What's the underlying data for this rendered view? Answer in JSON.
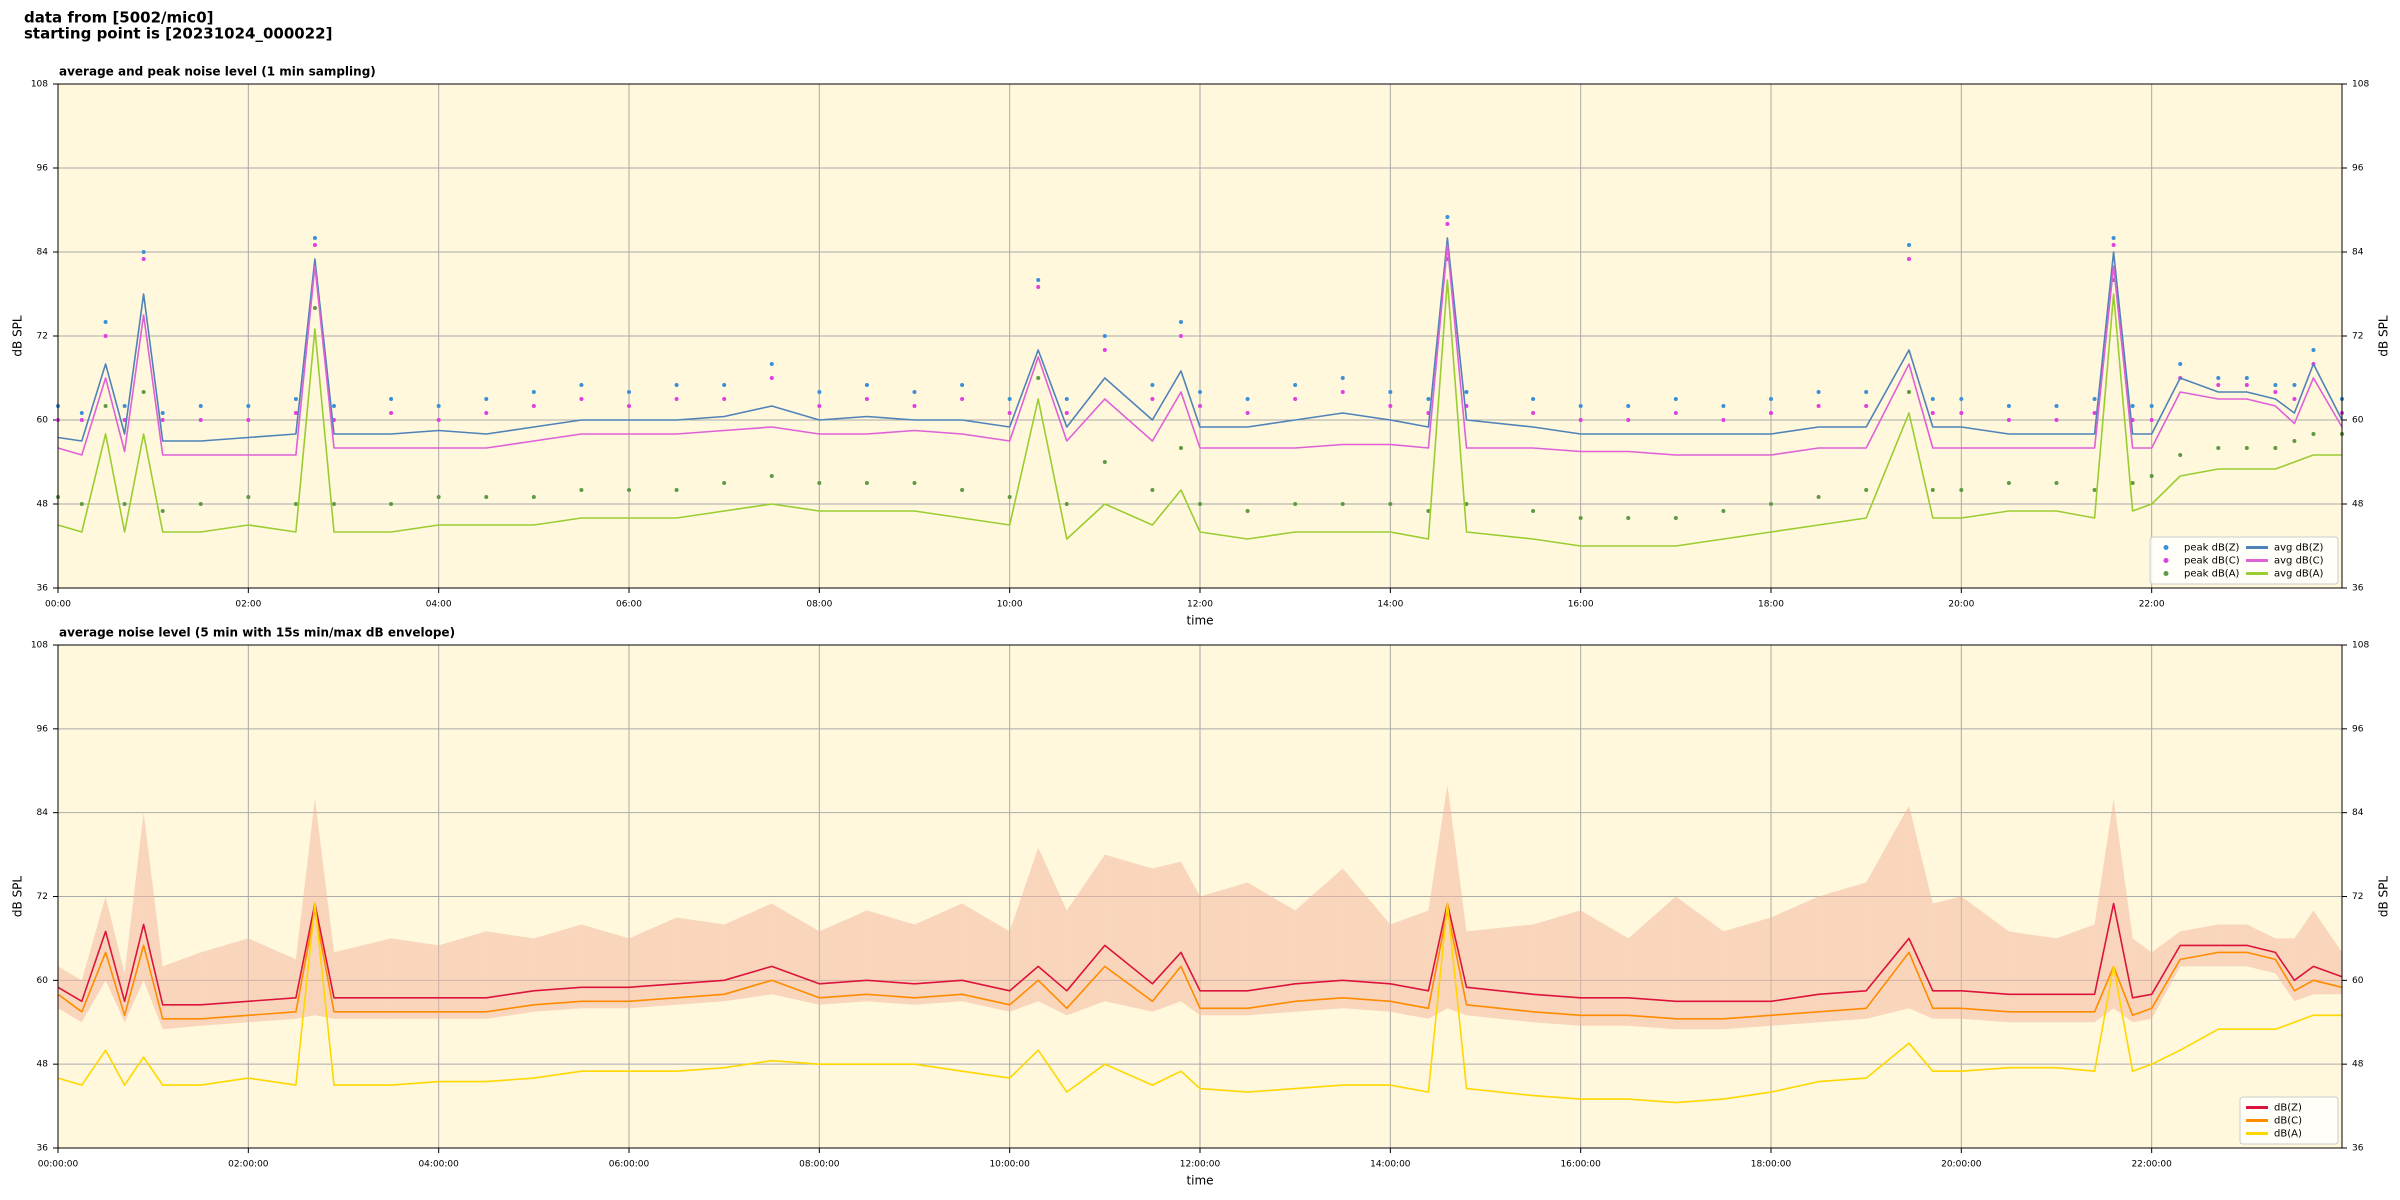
{
  "header": {
    "source": "data from [5002/mic0]",
    "start": "starting point is [20231024_000022]"
  },
  "chart_data": [
    {
      "type": "line",
      "title": "average and peak noise level (1 min sampling)",
      "xlabel": "time",
      "ylabel": "dB SPL",
      "facecolor": "#fff8dc",
      "grid": true,
      "legend": "lower right",
      "legend_columns": 2,
      "xlim": [
        0,
        24
      ],
      "ylim": [
        36,
        108
      ],
      "xticks": [
        {
          "value": 0,
          "label": "00:00"
        },
        {
          "value": 2,
          "label": "02:00"
        },
        {
          "value": 4,
          "label": "04:00"
        },
        {
          "value": 6,
          "label": "06:00"
        },
        {
          "value": 8,
          "label": "08:00"
        },
        {
          "value": 10,
          "label": "10:00"
        },
        {
          "value": 12,
          "label": "12:00"
        },
        {
          "value": 14,
          "label": "14:00"
        },
        {
          "value": 16,
          "label": "16:00"
        },
        {
          "value": 18,
          "label": "18:00"
        },
        {
          "value": 20,
          "label": "20:00"
        },
        {
          "value": 22,
          "label": "22:00"
        }
      ],
      "yticks": [
        36,
        48,
        60,
        72,
        84,
        96,
        108
      ],
      "x": [
        0,
        0.25,
        0.5,
        0.7,
        0.9,
        1.1,
        1.5,
        2,
        2.5,
        2.7,
        2.9,
        3.5,
        4,
        4.5,
        5,
        5.5,
        6,
        6.5,
        7,
        7.5,
        8,
        8.5,
        9,
        9.5,
        10,
        10.3,
        10.6,
        11,
        11.5,
        11.8,
        12,
        12.5,
        13,
        13.5,
        14,
        14.4,
        14.6,
        14.8,
        15.5,
        16,
        16.5,
        17,
        17.5,
        18,
        18.5,
        19,
        19.45,
        19.7,
        20,
        20.5,
        21,
        21.4,
        21.6,
        21.8,
        22,
        22.3,
        22.7,
        23,
        23.3,
        23.5,
        23.7,
        24
      ],
      "series": [
        {
          "name": "peak dB(Z)",
          "kind": "points",
          "color": "#3a8fd9",
          "values": [
            62,
            61,
            74,
            62,
            84,
            61,
            62,
            62,
            63,
            86,
            62,
            63,
            62,
            63,
            64,
            65,
            64,
            65,
            65,
            68,
            64,
            65,
            64,
            65,
            63,
            80,
            63,
            72,
            65,
            74,
            64,
            63,
            65,
            66,
            64,
            63,
            89,
            64,
            63,
            62,
            62,
            63,
            62,
            63,
            64,
            64,
            85,
            63,
            63,
            62,
            62,
            63,
            86,
            62,
            62,
            68,
            66,
            66,
            65,
            65,
            70,
            63
          ]
        },
        {
          "name": "peak dB(C)",
          "kind": "points",
          "color": "#e03ee0",
          "values": [
            60,
            60,
            72,
            60,
            83,
            60,
            60,
            60,
            61,
            85,
            60,
            61,
            60,
            61,
            62,
            63,
            62,
            63,
            63,
            66,
            62,
            63,
            62,
            63,
            61,
            79,
            61,
            70,
            63,
            72,
            62,
            61,
            63,
            64,
            62,
            61,
            88,
            62,
            61,
            60,
            60,
            61,
            60,
            61,
            62,
            62,
            83,
            61,
            61,
            60,
            60,
            61,
            85,
            60,
            60,
            66,
            65,
            65,
            64,
            63,
            68,
            61
          ]
        },
        {
          "name": "peak dB(A)",
          "kind": "points",
          "color": "#5e9a44",
          "values": [
            49,
            48,
            62,
            48,
            64,
            47,
            48,
            49,
            48,
            76,
            48,
            48,
            49,
            49,
            49,
            50,
            50,
            50,
            51,
            52,
            51,
            51,
            51,
            50,
            49,
            66,
            48,
            54,
            50,
            56,
            48,
            47,
            48,
            48,
            48,
            47,
            83,
            48,
            47,
            46,
            46,
            46,
            47,
            48,
            49,
            50,
            64,
            50,
            50,
            51,
            51,
            50,
            80,
            51,
            52,
            55,
            56,
            56,
            56,
            57,
            58,
            58
          ]
        },
        {
          "name": "avg dB(Z)",
          "kind": "line",
          "color": "#4f83b8",
          "values": [
            57.5,
            57,
            68,
            58,
            78,
            57,
            57,
            57.5,
            58,
            83,
            58,
            58,
            58.5,
            58,
            59,
            60,
            60,
            60,
            60.5,
            62,
            60,
            60.5,
            60,
            60,
            59,
            70,
            59,
            66,
            60,
            67,
            59,
            59,
            60,
            61,
            60,
            59,
            86,
            60,
            59,
            58,
            58,
            58,
            58,
            58,
            59,
            59,
            70,
            59,
            59,
            58,
            58,
            58,
            84,
            58,
            58,
            66,
            64,
            64,
            63,
            61,
            68,
            60
          ]
        },
        {
          "name": "avg dB(C)",
          "kind": "line",
          "color": "#e060d8",
          "values": [
            56,
            55,
            66,
            55.5,
            75,
            55,
            55,
            55,
            55,
            82,
            56,
            56,
            56,
            56,
            57,
            58,
            58,
            58,
            58.5,
            59,
            58,
            58,
            58.5,
            58,
            57,
            69,
            57,
            63,
            57,
            64,
            56,
            56,
            56,
            56.5,
            56.5,
            56,
            85,
            56,
            56,
            55.5,
            55.5,
            55,
            55,
            55,
            56,
            56,
            68,
            56,
            56,
            56,
            56,
            56,
            82,
            56,
            56,
            64,
            63,
            63,
            62,
            59.5,
            66,
            59
          ]
        },
        {
          "name": "avg dB(A)",
          "kind": "line",
          "color": "#9acd32",
          "values": [
            45,
            44,
            58,
            44,
            58,
            44,
            44,
            45,
            44,
            73,
            44,
            44,
            45,
            45,
            45,
            46,
            46,
            46,
            47,
            48,
            47,
            47,
            47,
            46,
            45,
            63,
            43,
            48,
            45,
            50,
            44,
            43,
            44,
            44,
            44,
            43,
            80,
            44,
            43,
            42,
            42,
            42,
            43,
            44,
            45,
            46,
            61,
            46,
            46,
            47,
            47,
            46,
            78,
            47,
            48,
            52,
            53,
            53,
            53,
            54,
            55,
            55
          ]
        }
      ]
    },
    {
      "type": "line",
      "title": "average noise level (5 min with 15s min/max dB envelope)",
      "xlabel": "time",
      "ylabel": "dB SPL",
      "facecolor": "#fff8dc",
      "grid": true,
      "legend": "lower right",
      "legend_columns": 1,
      "xlim": [
        0,
        24
      ],
      "ylim": [
        36,
        108
      ],
      "xticks": [
        {
          "value": 0,
          "label": "00:00:00"
        },
        {
          "value": 2,
          "label": "02:00:00"
        },
        {
          "value": 4,
          "label": "04:00:00"
        },
        {
          "value": 6,
          "label": "06:00:00"
        },
        {
          "value": 8,
          "label": "08:00:00"
        },
        {
          "value": 10,
          "label": "10:00:00"
        },
        {
          "value": 12,
          "label": "12:00:00"
        },
        {
          "value": 14,
          "label": "14:00:00"
        },
        {
          "value": 16,
          "label": "16:00:00"
        },
        {
          "value": 18,
          "label": "18:00:00"
        },
        {
          "value": 20,
          "label": "20:00:00"
        },
        {
          "value": 22,
          "label": "22:00:00"
        }
      ],
      "yticks": [
        36,
        48,
        60,
        72,
        84,
        96,
        108
      ],
      "x": [
        0,
        0.25,
        0.5,
        0.7,
        0.9,
        1.1,
        1.5,
        2,
        2.5,
        2.7,
        2.9,
        3.5,
        4,
        4.5,
        5,
        5.5,
        6,
        6.5,
        7,
        7.5,
        8,
        8.5,
        9,
        9.5,
        10,
        10.3,
        10.6,
        11,
        11.5,
        11.8,
        12,
        12.5,
        13,
        13.5,
        14,
        14.4,
        14.6,
        14.8,
        15.5,
        16,
        16.5,
        17,
        17.5,
        18,
        18.5,
        19,
        19.45,
        19.7,
        20,
        20.5,
        21,
        21.4,
        21.6,
        21.8,
        22,
        22.3,
        22.7,
        23,
        23.3,
        23.5,
        23.7,
        24
      ],
      "band": {
        "color": "#f4b8a0",
        "low": [
          56,
          54,
          60,
          54,
          60,
          53,
          53.5,
          54,
          54.5,
          55,
          54.5,
          54.5,
          54.5,
          54.5,
          55.5,
          56,
          56,
          56.5,
          57,
          58,
          56.5,
          57,
          56.5,
          57,
          55.5,
          57,
          55,
          57,
          55.5,
          57,
          55,
          55,
          55.5,
          56,
          55.5,
          54.5,
          56,
          55,
          54,
          53.5,
          53.5,
          53,
          53,
          53.5,
          54,
          54.5,
          56,
          54.5,
          54.5,
          54,
          54,
          54,
          56,
          54,
          54.5,
          62,
          62,
          62,
          61,
          57,
          58,
          58
        ],
        "high": [
          62,
          60,
          72,
          61,
          84,
          62,
          64,
          66,
          63,
          86,
          64,
          66,
          65,
          67,
          66,
          68,
          66,
          69,
          68,
          71,
          67,
          70,
          68,
          71,
          67,
          79,
          70,
          78,
          76,
          77,
          72,
          74,
          70,
          76,
          68,
          70,
          88,
          67,
          68,
          70,
          66,
          72,
          67,
          69,
          72,
          74,
          85,
          71,
          72,
          67,
          66,
          68,
          86,
          66,
          64,
          67,
          68,
          68,
          66,
          66,
          70,
          64
        ]
      },
      "series": [
        {
          "name": "dB(Z)",
          "kind": "line",
          "color": "#dc143c",
          "values": [
            59,
            57,
            67,
            57,
            68,
            56.5,
            56.5,
            57,
            57.5,
            71,
            57.5,
            57.5,
            57.5,
            57.5,
            58.5,
            59,
            59,
            59.5,
            60,
            62,
            59.5,
            60,
            59.5,
            60,
            58.5,
            62,
            58.5,
            65,
            59.5,
            64,
            58.5,
            58.5,
            59.5,
            60,
            59.5,
            58.5,
            71,
            59,
            58,
            57.5,
            57.5,
            57,
            57,
            57,
            58,
            58.5,
            66,
            58.5,
            58.5,
            58,
            58,
            58,
            71,
            57.5,
            58,
            65,
            65,
            65,
            64,
            60,
            62,
            60.5
          ]
        },
        {
          "name": "dB(C)",
          "kind": "line",
          "color": "#ff8c00",
          "values": [
            58,
            55.5,
            64,
            55,
            65,
            54.5,
            54.5,
            55,
            55.5,
            70,
            55.5,
            55.5,
            55.5,
            55.5,
            56.5,
            57,
            57,
            57.5,
            58,
            60,
            57.5,
            58,
            57.5,
            58,
            56.5,
            60,
            56,
            62,
            57,
            62,
            56,
            56,
            57,
            57.5,
            57,
            56,
            70,
            56.5,
            55.5,
            55,
            55,
            54.5,
            54.5,
            55,
            55.5,
            56,
            64,
            56,
            56,
            55.5,
            55.5,
            55.5,
            62,
            55,
            56,
            63,
            64,
            64,
            63,
            58.5,
            60,
            59
          ]
        },
        {
          "name": "dB(A)",
          "kind": "line",
          "color": "#ffd700",
          "values": [
            46,
            45,
            50,
            45,
            49,
            45,
            45,
            46,
            45,
            71,
            45,
            45,
            45.5,
            45.5,
            46,
            47,
            47,
            47,
            47.5,
            48.5,
            48,
            48,
            48,
            47,
            46,
            50,
            44,
            48,
            45,
            47,
            44.5,
            44,
            44.5,
            45,
            45,
            44,
            71,
            44.5,
            43.5,
            43,
            43,
            42.5,
            43,
            44,
            45.5,
            46,
            51,
            47,
            47,
            47.5,
            47.5,
            47,
            62,
            47,
            48,
            50,
            53,
            53,
            53,
            54,
            55,
            55
          ]
        }
      ]
    }
  ]
}
